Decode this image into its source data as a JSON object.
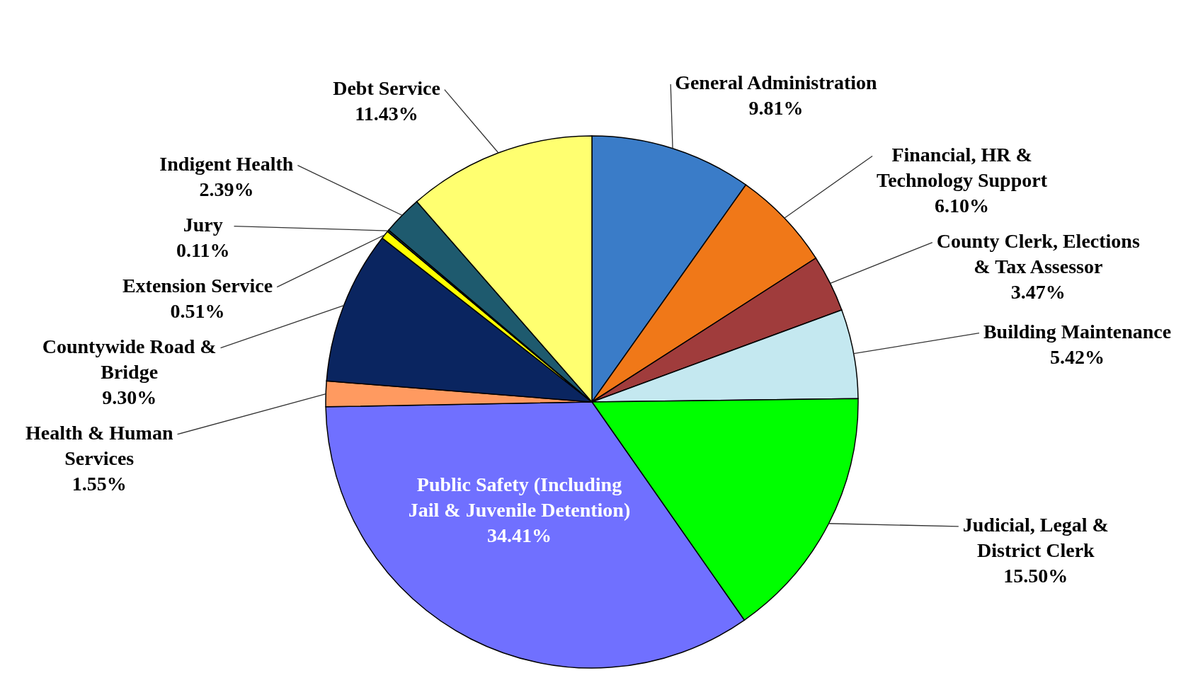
{
  "chart_data": {
    "type": "pie",
    "categories": [
      "General Administration",
      "Financial, HR & Technology Support",
      "County Clerk, Elections & Tax Assessor",
      "Building Maintenance",
      "Judicial, Legal & District Clerk",
      "Public Safety (Including Jail & Juvenile Detention)",
      "Health & Human Services",
      "Countywide Road & Bridge",
      "Extension Service",
      "Jury",
      "Indigent Health",
      "Debt Service"
    ],
    "values": [
      9.81,
      6.1,
      3.47,
      5.42,
      15.5,
      34.41,
      1.55,
      9.3,
      0.51,
      0.11,
      2.39,
      11.43
    ],
    "colors": [
      "#3a7cc8",
      "#f07818",
      "#a03c3c",
      "#c4e8f0",
      "#00ff00",
      "#7070ff",
      "#ff9a60",
      "#0a2560",
      "#ffff00",
      "#1a3050",
      "#1e5a6e",
      "#ffff70"
    ],
    "value_labels": [
      "9.81%",
      "6.10%",
      "3.47%",
      "5.42%",
      "15.50%",
      "34.41%",
      "1.55%",
      "9.30%",
      "0.51%",
      "0.11%",
      "2.39%",
      "11.43%"
    ],
    "legend": false
  }
}
